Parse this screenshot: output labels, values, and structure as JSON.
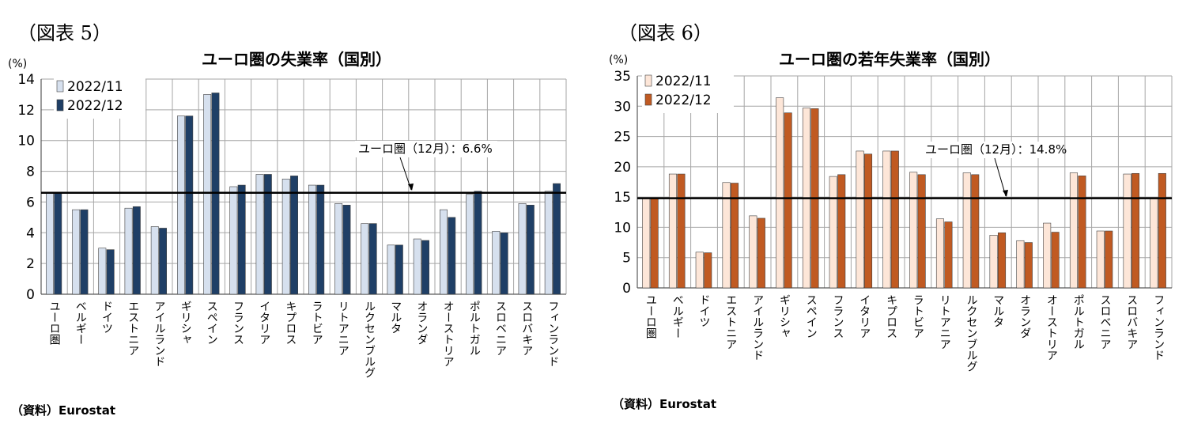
{
  "figures": [
    {
      "label": "（図表 5）",
      "source": "（資料）Eurostat"
    },
    {
      "label": "（図表 6）",
      "source": "（資料）Eurostat"
    }
  ],
  "colors": {
    "left_light": "#d6e0ee",
    "left_dark": "#1f3f66",
    "right_light": "#fde6d8",
    "right_dark": "#c05a22",
    "grid": "#a6a6a6",
    "reference_line": "#000000"
  },
  "chart_data": [
    {
      "type": "bar",
      "title": "ユーロ圏の失業率（国別）",
      "ylabel": "(%)",
      "ylim": [
        0,
        14
      ],
      "yticks": [
        0,
        2,
        4,
        6,
        8,
        10,
        12,
        14
      ],
      "grid": true,
      "legend_position": "top-left",
      "categories": [
        "ユーロ圏",
        "ベルギー",
        "ドイツ",
        "エストニア",
        "アイルランド",
        "ギリシャ",
        "スペイン",
        "フランス",
        "イタリア",
        "キプロス",
        "ラトビア",
        "リトアニア",
        "ルクセンブルグ",
        "マルタ",
        "オランダ",
        "オーストリア",
        "ポルトガル",
        "スロベニア",
        "スロバキア",
        "フィンランド"
      ],
      "series": [
        {
          "name": "2022/11",
          "values": [
            6.6,
            5.5,
            3.0,
            5.6,
            4.4,
            11.6,
            13.0,
            7.0,
            7.8,
            7.5,
            7.1,
            5.9,
            4.6,
            3.2,
            3.6,
            5.5,
            6.5,
            4.1,
            5.9,
            6.7
          ]
        },
        {
          "name": "2022/12",
          "values": [
            6.6,
            5.5,
            2.9,
            5.7,
            4.3,
            11.6,
            13.1,
            7.1,
            7.8,
            7.7,
            7.1,
            5.8,
            4.6,
            3.2,
            3.5,
            5.0,
            6.7,
            4.0,
            5.8,
            7.2
          ]
        }
      ],
      "reference_line": {
        "value": 6.6,
        "label": "ユーロ圏（12月）：6.6%"
      }
    },
    {
      "type": "bar",
      "title": "ユーロ圏の若年失業率（国別）",
      "ylabel": "(%)",
      "ylim": [
        0,
        35
      ],
      "yticks": [
        0,
        5,
        10,
        15,
        20,
        25,
        30,
        35
      ],
      "grid": true,
      "legend_position": "top-left",
      "categories": [
        "ユーロ圏",
        "ベルギー",
        "ドイツ",
        "エストニア",
        "アイルランド",
        "ギリシャ",
        "スペイン",
        "フランス",
        "イタリア",
        "キプロス",
        "ラトビア",
        "リトアニア",
        "ルクセンブルグ",
        "マルタ",
        "オランダ",
        "オーストリア",
        "ポルトガル",
        "スロベニア",
        "スロバキア",
        "フィンランド"
      ],
      "series": [
        {
          "name": "2022/11",
          "values": [
            14.8,
            18.8,
            5.9,
            17.4,
            11.9,
            31.4,
            29.7,
            18.4,
            22.6,
            22.6,
            19.1,
            11.4,
            19.0,
            8.7,
            7.8,
            10.7,
            19.0,
            9.4,
            18.8,
            14.8
          ]
        },
        {
          "name": "2022/12",
          "values": [
            14.8,
            18.8,
            5.8,
            17.3,
            11.5,
            28.9,
            29.6,
            18.7,
            22.1,
            22.6,
            18.7,
            10.9,
            18.7,
            9.1,
            7.5,
            9.2,
            18.5,
            9.4,
            18.9,
            18.9
          ]
        }
      ],
      "reference_line": {
        "value": 14.8,
        "label": "ユーロ圏（12月）：14.8%"
      }
    }
  ]
}
